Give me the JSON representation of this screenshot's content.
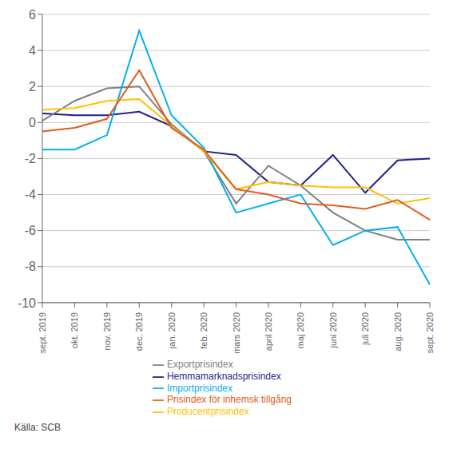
{
  "chart_data": {
    "type": "line",
    "categories": [
      "sept. 2019",
      "okt. 2019",
      "nov. 2019",
      "dec. 2019",
      "jan. 2020",
      "feb. 2020",
      "mars 2020",
      "april 2020",
      "maj 2020",
      "juni 2020",
      "juli 2020",
      "aug. 2020",
      "sept. 2020"
    ],
    "series": [
      {
        "name": "Hemmamarknadsprisindex",
        "color": "#1f1f8f",
        "values": [
          0.5,
          0.4,
          0.4,
          0.6,
          -0.2,
          -1.6,
          -1.8,
          -3.3,
          -3.5,
          -1.8,
          -3.9,
          -2.1,
          -2.0
        ]
      },
      {
        "name": "Exportprisindex",
        "color": "#7f7f7f",
        "values": [
          0.1,
          1.2,
          1.9,
          2.0,
          -0.1,
          -1.6,
          -4.5,
          -2.4,
          -3.5,
          -5.0,
          -6.0,
          -6.5,
          -6.5
        ]
      },
      {
        "name": "Importprisindex",
        "color": "#00b0f0",
        "values": [
          -1.5,
          -1.5,
          -0.7,
          5.1,
          0.4,
          -1.4,
          -5.0,
          -4.5,
          -4.0,
          -6.8,
          -6.0,
          -5.8,
          -9.0
        ]
      },
      {
        "name": "Producentprisindex",
        "color": "#ffc000",
        "values": [
          0.7,
          0.8,
          1.2,
          1.3,
          -0.2,
          -1.6,
          -3.7,
          -3.3,
          -3.5,
          -3.6,
          -3.6,
          -4.5,
          -4.2
        ]
      },
      {
        "name": "Prisindex för inhemsk tillgång",
        "color": "#e05c20",
        "values": [
          -0.5,
          -0.3,
          0.2,
          2.9,
          -0.3,
          -1.5,
          -3.7,
          -4.0,
          -4.5,
          -4.6,
          -4.8,
          -4.3,
          -5.4
        ]
      }
    ],
    "ylim": [
      -10,
      6
    ],
    "yticks": [
      -10,
      -8,
      -6,
      -4,
      -2,
      0,
      2,
      4,
      6
    ],
    "grid": true,
    "legend": "bottom",
    "annotations": [
      "Källa: SCB"
    ]
  }
}
